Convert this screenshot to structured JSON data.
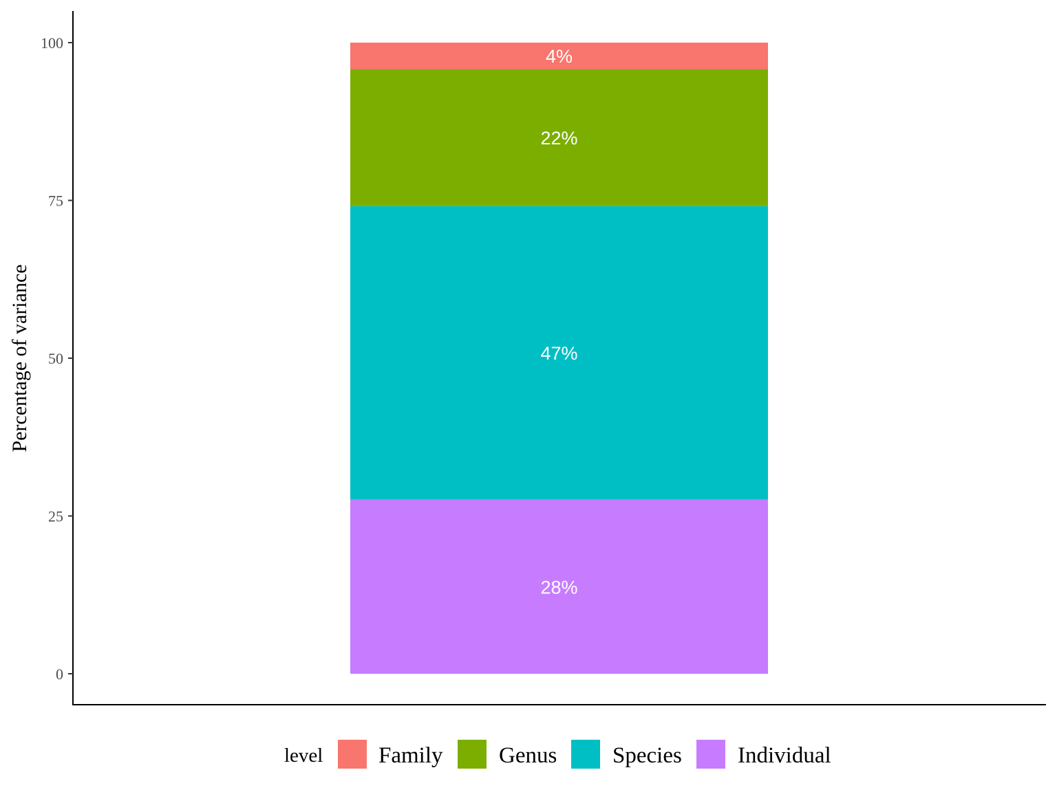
{
  "chart_data": {
    "type": "bar",
    "stacked": true,
    "categories": [
      ""
    ],
    "ylabel": "Percentage of variance",
    "xlabel": "",
    "ylim": [
      0,
      100
    ],
    "yticks": [
      0,
      25,
      50,
      75,
      100
    ],
    "ytick_labels": [
      "0",
      "25",
      "50",
      "75",
      "100"
    ],
    "grid": false,
    "legend": {
      "title": "level",
      "position": "bottom"
    },
    "series": [
      {
        "name": "Individual",
        "values": [
          27.6
        ],
        "label": "28%",
        "color": "#C77CFF"
      },
      {
        "name": "Species",
        "values": [
          46.5
        ],
        "label": "47%",
        "color": "#00BFC4"
      },
      {
        "name": "Genus",
        "values": [
          21.7
        ],
        "label": "22%",
        "color": "#7CAE00"
      },
      {
        "name": "Family",
        "values": [
          4.2
        ],
        "label": "4%",
        "color": "#F8766D"
      }
    ],
    "legend_order": [
      "Family",
      "Genus",
      "Species",
      "Individual"
    ]
  }
}
